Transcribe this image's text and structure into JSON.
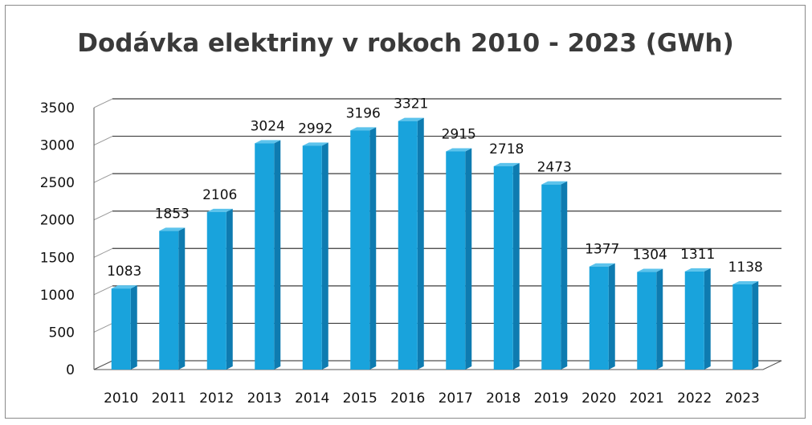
{
  "chart_data": {
    "type": "bar",
    "title": "Dodávka elektriny v rokoch 2010 - 2023 (GWh)",
    "xlabel": "",
    "ylabel": "",
    "categories": [
      "2010",
      "2011",
      "2012",
      "2013",
      "2014",
      "2015",
      "2016",
      "2017",
      "2018",
      "2019",
      "2020",
      "2021",
      "2022",
      "2023"
    ],
    "values": [
      1083,
      1853,
      2106,
      3024,
      2992,
      3196,
      3321,
      2915,
      2718,
      2473,
      1377,
      1304,
      1311,
      1138
    ],
    "data_labels": [
      "1083",
      "1853",
      "2106",
      "3024",
      "2992",
      "3196",
      "3321",
      "2915",
      "2718",
      "2473",
      "1377",
      "1304",
      "1311",
      "1138"
    ],
    "ylim": [
      0,
      3500
    ],
    "yticks": [
      0,
      500,
      1000,
      1500,
      2000,
      2500,
      3000,
      3500
    ],
    "ytick_labels": [
      "0",
      "500",
      "1000",
      "1500",
      "2000",
      "2500",
      "3000",
      "3500"
    ],
    "grid": true,
    "legend": "none",
    "style": "3d-column",
    "colors": {
      "bar_front": "#19a3dc",
      "bar_side": "#0e7bb0",
      "bar_top": "#5cc3ec",
      "grid": "#3c3c3c",
      "text": "#111111",
      "title": "#3a3a3a"
    }
  }
}
